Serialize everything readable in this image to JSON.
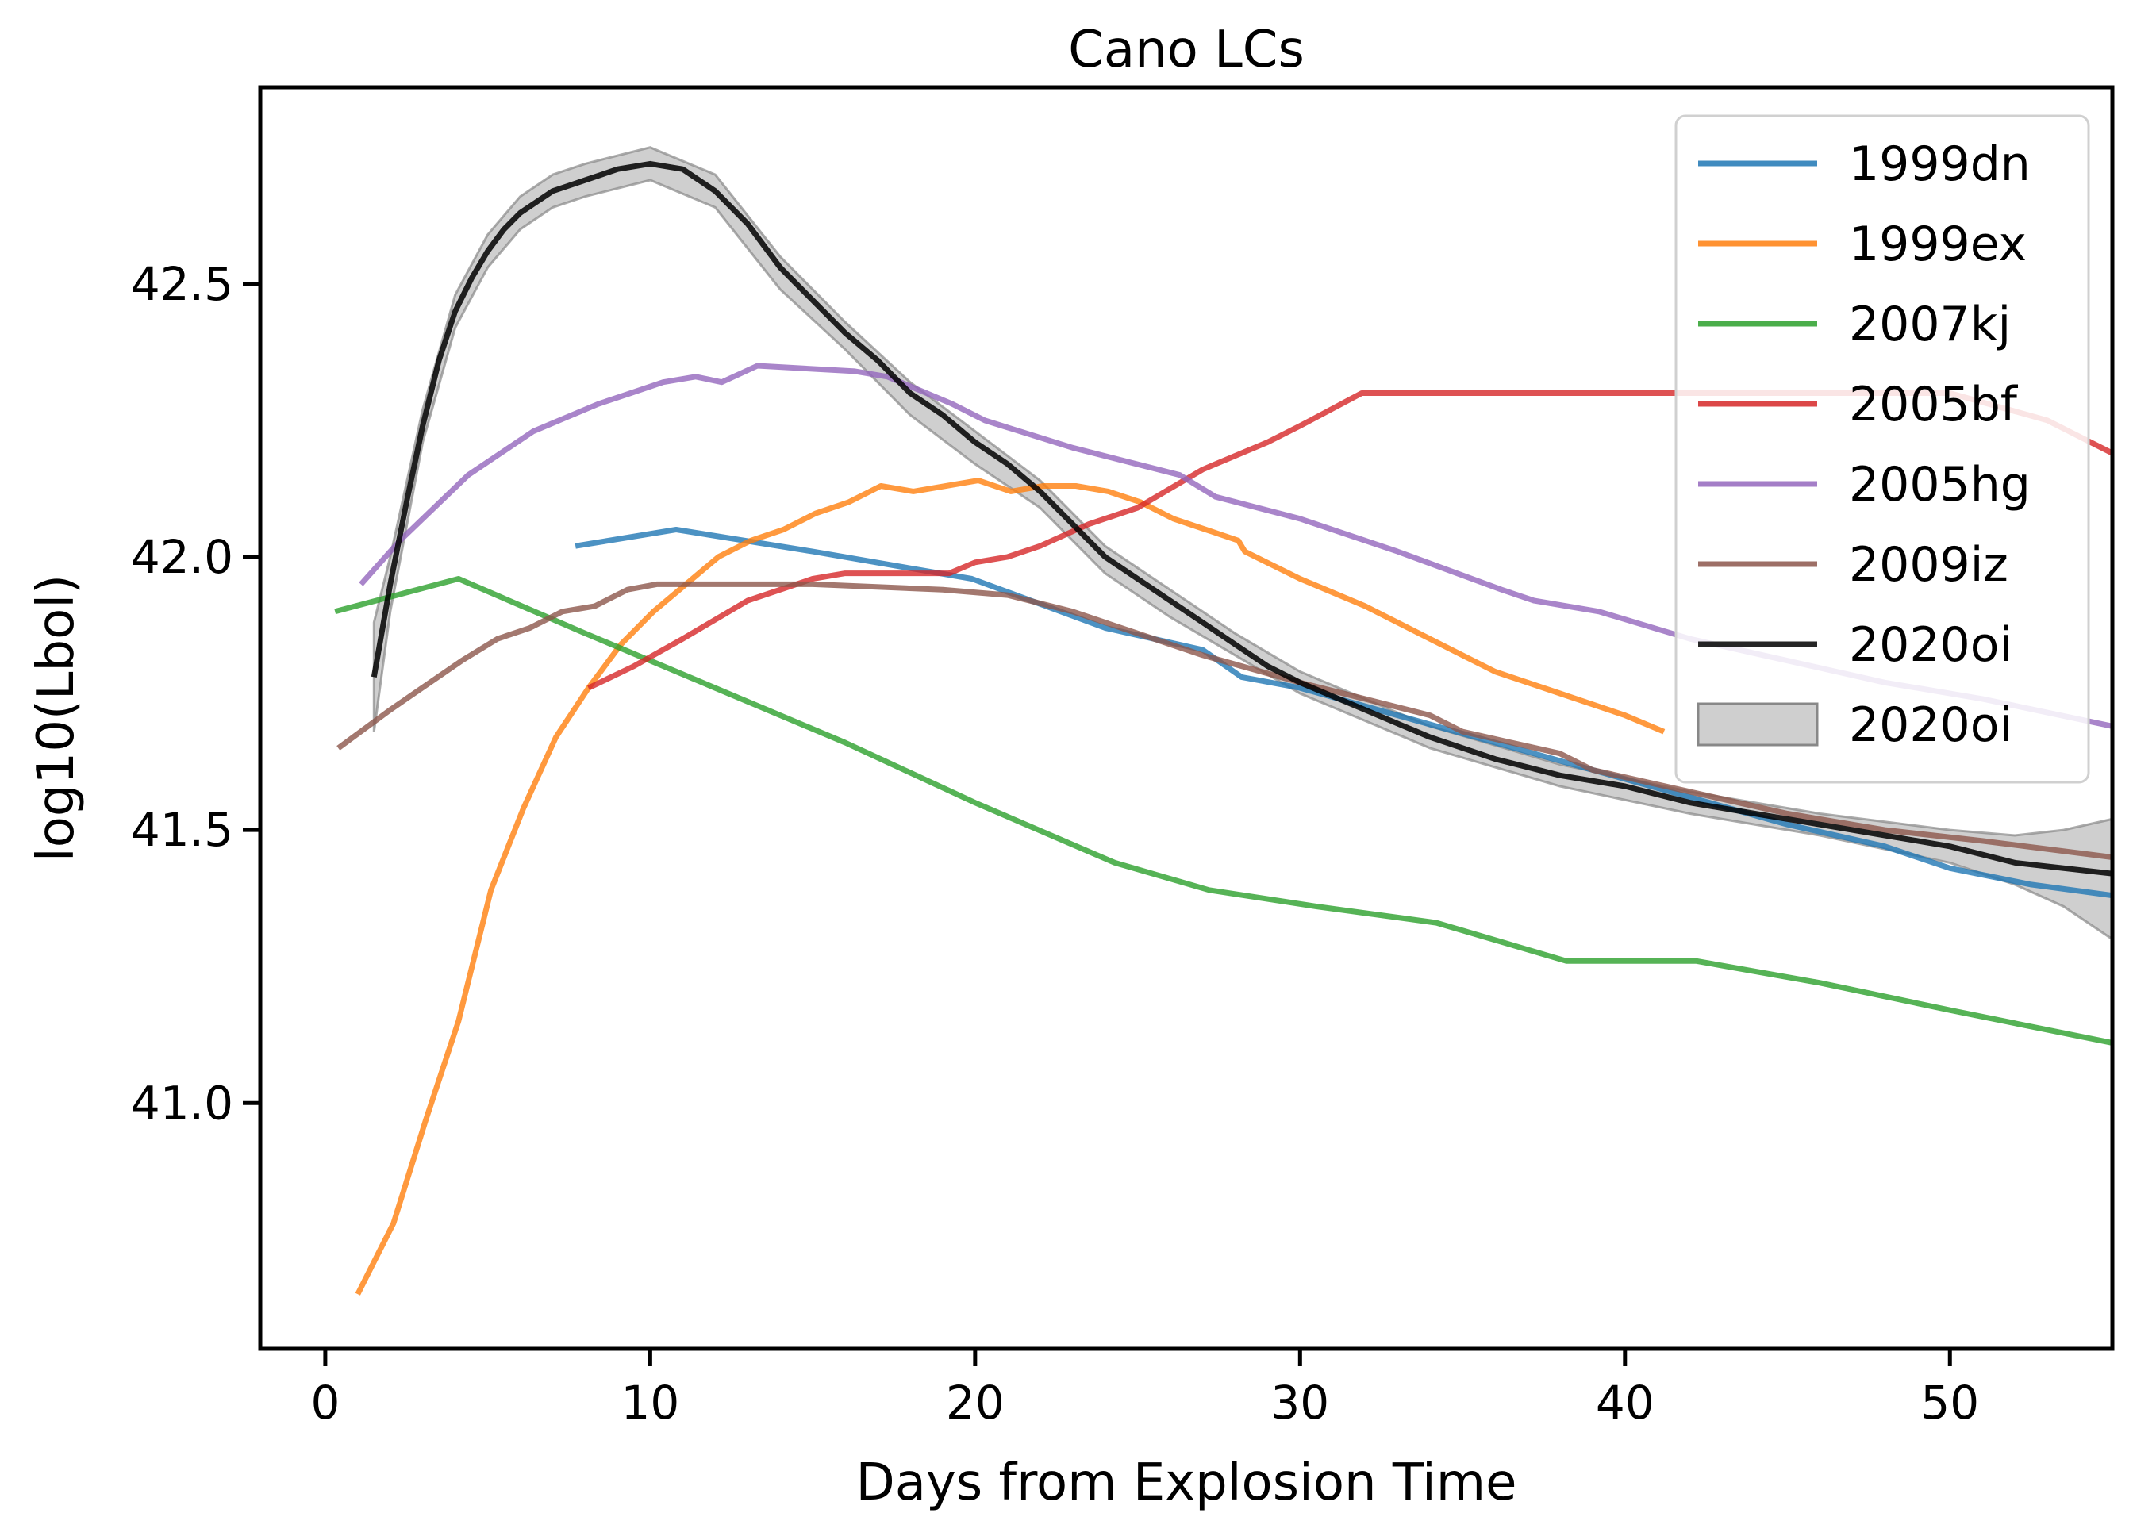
{
  "chart_data": {
    "type": "line",
    "title": "Cano LCs",
    "xlabel": "Days from Explosion Time",
    "ylabel": "log10(Lbol)",
    "xlim": [
      -2,
      55
    ],
    "ylim": [
      40.55,
      42.86
    ],
    "xticks": [
      0,
      10,
      20,
      30,
      40,
      50
    ],
    "yticks": [
      41.0,
      41.5,
      42.0,
      42.5
    ],
    "xtick_labels": [
      "0",
      "10",
      "20",
      "30",
      "40",
      "50"
    ],
    "ytick_labels": [
      "41.0",
      "41.5",
      "42.0",
      "42.5"
    ],
    "grid": false,
    "legend_position": "top-right",
    "series": [
      {
        "name": "1999dn",
        "color": "#1f77b4",
        "x": [
          7.7,
          10.8,
          15,
          19.9,
          24,
          27,
          28.2,
          30,
          33,
          36,
          39,
          42,
          45,
          48,
          50,
          52.5,
          55
        ],
        "y": [
          42.02,
          42.05,
          42.01,
          41.96,
          41.87,
          41.83,
          41.78,
          41.76,
          41.71,
          41.66,
          41.61,
          41.56,
          41.51,
          41.47,
          41.43,
          41.4,
          41.38
        ]
      },
      {
        "name": "1999ex",
        "color": "#ff7f0e",
        "x": [
          1.0,
          2.1,
          3.1,
          4.1,
          5.1,
          6.1,
          7.1,
          8.1,
          9.1,
          10.1,
          11.1,
          12.1,
          13.1,
          14.1,
          15.1,
          16.1,
          17.1,
          18.1,
          19.1,
          20.1,
          21.1,
          22.1,
          23.1,
          24.1,
          25.1,
          26.1,
          27.1,
          28.1,
          28.3,
          30,
          32,
          34,
          36,
          38,
          40,
          41.2
        ],
        "y": [
          40.65,
          40.78,
          40.97,
          41.15,
          41.39,
          41.54,
          41.67,
          41.76,
          41.84,
          41.9,
          41.95,
          42.0,
          42.03,
          42.05,
          42.08,
          42.1,
          42.13,
          42.12,
          42.13,
          42.14,
          42.12,
          42.13,
          42.13,
          42.12,
          42.1,
          42.07,
          42.05,
          42.03,
          42.01,
          41.96,
          41.91,
          41.85,
          41.79,
          41.75,
          41.71,
          41.68
        ]
      },
      {
        "name": "2007kj",
        "color": "#2ca02c",
        "x": [
          0.3,
          4.1,
          8,
          12,
          16,
          20,
          24.3,
          27.2,
          30.5,
          34.2,
          38.2,
          42.2,
          46,
          50,
          55
        ],
        "y": [
          41.9,
          41.96,
          41.86,
          41.76,
          41.66,
          41.55,
          41.44,
          41.39,
          41.36,
          41.33,
          41.26,
          41.26,
          41.22,
          41.17,
          41.11
        ]
      },
      {
        "name": "2005bf",
        "color": "#d62728",
        "x": [
          8.1,
          9.5,
          11,
          13,
          15,
          16,
          17.5,
          19.2,
          20,
          21,
          22,
          23.5,
          25,
          27,
          29,
          30,
          31.9,
          40,
          50,
          53,
          55
        ],
        "y": [
          41.76,
          41.8,
          41.85,
          41.92,
          41.96,
          41.97,
          41.97,
          41.97,
          41.99,
          42.0,
          42.02,
          42.06,
          42.09,
          42.16,
          42.21,
          42.24,
          42.3,
          42.3,
          42.3,
          42.25,
          42.19
        ]
      },
      {
        "name": "2005hg",
        "color": "#9467bd",
        "x": [
          1.1,
          2.3,
          4.4,
          6.4,
          8.4,
          9.4,
          10.4,
          11.4,
          12.2,
          13.3,
          16.3,
          17.3,
          19.3,
          20.3,
          23,
          26.3,
          27.4,
          30,
          33,
          36.2,
          37.2,
          39.2,
          42,
          45,
          48,
          51,
          55
        ],
        "y": [
          41.95,
          42.03,
          42.15,
          42.23,
          42.28,
          42.3,
          42.32,
          42.33,
          42.32,
          42.35,
          42.34,
          42.33,
          42.28,
          42.25,
          42.2,
          42.15,
          42.11,
          42.07,
          42.01,
          41.94,
          41.92,
          41.9,
          41.85,
          41.81,
          41.77,
          41.74,
          41.69
        ]
      },
      {
        "name": "2009iz",
        "color": "#8c564b",
        "x": [
          0.4,
          2,
          4.2,
          5.3,
          6.3,
          7.3,
          8.3,
          9.3,
          10.2,
          11,
          15,
          19,
          21,
          23,
          25,
          27,
          30,
          34,
          35,
          38,
          39,
          42,
          45,
          48,
          51,
          55
        ],
        "y": [
          41.65,
          41.72,
          41.81,
          41.85,
          41.87,
          41.9,
          41.91,
          41.94,
          41.95,
          41.95,
          41.95,
          41.94,
          41.93,
          41.9,
          41.86,
          41.82,
          41.77,
          41.71,
          41.68,
          41.64,
          41.61,
          41.57,
          41.53,
          41.5,
          41.48,
          41.45
        ]
      },
      {
        "name": "2020oi",
        "color": "#000000",
        "x": [
          1.5,
          2,
          2.5,
          3,
          3.5,
          4,
          4.5,
          5,
          5.5,
          6,
          6.5,
          7,
          7.5,
          8,
          9,
          10,
          11,
          12,
          13,
          14,
          15,
          16,
          17,
          18,
          19,
          20,
          21,
          22,
          23,
          24,
          25,
          26,
          27,
          28,
          29,
          30,
          32,
          34,
          36,
          38,
          40,
          42,
          44,
          46,
          48,
          50,
          52,
          55
        ],
        "y": [
          41.78,
          41.95,
          42.1,
          42.24,
          42.36,
          42.45,
          42.51,
          42.56,
          42.6,
          42.63,
          42.65,
          42.67,
          42.68,
          42.69,
          42.71,
          42.72,
          42.71,
          42.67,
          42.61,
          42.53,
          42.47,
          42.41,
          42.36,
          42.3,
          42.26,
          42.21,
          42.17,
          42.12,
          42.06,
          42.0,
          41.96,
          41.92,
          41.88,
          41.84,
          41.8,
          41.77,
          41.72,
          41.67,
          41.63,
          41.6,
          41.58,
          41.55,
          41.53,
          41.51,
          41.49,
          41.47,
          41.44,
          41.42
        ]
      }
    ],
    "band": {
      "name": "2020oi",
      "color": "#888888",
      "x": [
        1.5,
        2,
        3,
        4,
        5,
        6,
        7,
        8,
        10,
        12,
        14,
        16,
        18,
        20,
        22,
        24,
        26,
        28,
        30,
        34,
        38,
        42,
        46,
        50,
        52,
        53.5,
        55
      ],
      "upper": [
        41.88,
        42.0,
        42.27,
        42.48,
        42.59,
        42.66,
        42.7,
        42.72,
        42.75,
        42.7,
        42.55,
        42.43,
        42.32,
        42.23,
        42.14,
        42.02,
        41.94,
        41.86,
        41.79,
        41.69,
        41.62,
        41.57,
        41.53,
        41.5,
        41.49,
        41.5,
        41.52
      ],
      "lower": [
        41.68,
        41.9,
        42.21,
        42.42,
        42.53,
        42.6,
        42.64,
        42.66,
        42.69,
        42.64,
        42.49,
        42.38,
        42.26,
        42.17,
        42.09,
        41.97,
        41.89,
        41.82,
        41.75,
        41.65,
        41.58,
        41.53,
        41.49,
        41.44,
        41.4,
        41.36,
        41.3
      ]
    },
    "legend": [
      {
        "label": "1999dn",
        "color": "#1f77b4",
        "kind": "line"
      },
      {
        "label": "1999ex",
        "color": "#ff7f0e",
        "kind": "line"
      },
      {
        "label": "2007kj",
        "color": "#2ca02c",
        "kind": "line"
      },
      {
        "label": "2005bf",
        "color": "#d62728",
        "kind": "line"
      },
      {
        "label": "2005hg",
        "color": "#9467bd",
        "kind": "line"
      },
      {
        "label": "2009iz",
        "color": "#8c564b",
        "kind": "line"
      },
      {
        "label": "2020oi",
        "color": "#000000",
        "kind": "line"
      },
      {
        "label": "2020oi",
        "color": "#888888",
        "kind": "patch"
      }
    ]
  }
}
